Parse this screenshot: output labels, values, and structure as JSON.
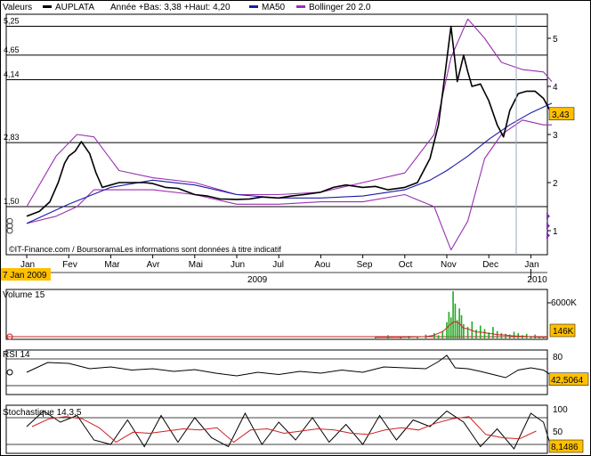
{
  "colors": {
    "price": "#000000",
    "ma": "#1a1aa8",
    "bollinger": "#9a2fb0",
    "volume": "#22aa22",
    "volume_avg": "#cc2222",
    "stoch_signal": "#cc2222",
    "badge_bg": "#ffc000",
    "grid": "#000000",
    "today_line": "#99aabb"
  },
  "legend": {
    "label": "Valeurs",
    "symbol": "AUPLATA",
    "stats": "Année +Bas: 3,38 +Haut: 4,20",
    "ma": "MA50",
    "bollinger": "Bollinger 20 2.0"
  },
  "credit": "©IT-Finance.com / BoursoramaLes informations sont données à titre indicatif",
  "date_badge": "7 Jan 2009",
  "chart_data": [
    {
      "type": "line",
      "name": "price",
      "x_labels": [
        "Jan",
        "Fev",
        "Mar",
        "Avr",
        "Mai",
        "Jun",
        "Jul",
        "Aou",
        "Sep",
        "Oct",
        "Nov",
        "Dec",
        "Jan"
      ],
      "year_labels": [
        "2009",
        "2010"
      ],
      "hlines_left": [
        "5,25",
        "4,65",
        "4,14",
        "2,83",
        "1,50"
      ],
      "right_ticks": [
        "5",
        "4",
        "3",
        "2",
        "1"
      ],
      "last_value": "3,43",
      "ylim": [
        0.5,
        5.5
      ],
      "series": [
        {
          "name": "AUPLATA",
          "x": [
            0,
            0.3,
            0.55,
            0.75,
            0.9,
            1.0,
            1.15,
            1.3,
            1.5,
            1.65,
            1.8,
            2.0,
            2.2,
            2.5,
            2.8,
            3.0,
            3.3,
            3.6,
            4.0,
            4.3,
            4.6,
            5.0,
            5.3,
            5.6,
            6.0,
            6.3,
            6.6,
            7.0,
            7.3,
            7.6,
            8.0,
            8.3,
            8.6,
            9.0,
            9.3,
            9.6,
            9.8,
            9.95,
            10.1,
            10.25,
            10.4,
            10.5,
            10.6,
            10.8,
            11.0,
            11.2,
            11.35,
            11.5,
            11.7,
            11.9,
            12.1,
            12.3,
            12.5
          ],
          "y": [
            1.3,
            1.4,
            1.6,
            2.0,
            2.4,
            2.55,
            2.65,
            2.85,
            2.6,
            2.2,
            1.9,
            1.95,
            2.0,
            2.0,
            2.0,
            1.98,
            1.9,
            1.88,
            1.75,
            1.72,
            1.66,
            1.65,
            1.66,
            1.7,
            1.68,
            1.72,
            1.75,
            1.8,
            1.9,
            1.95,
            1.9,
            1.92,
            1.85,
            1.9,
            2.0,
            2.5,
            3.2,
            4.2,
            5.25,
            4.1,
            4.65,
            4.3,
            4.0,
            4.05,
            3.7,
            3.2,
            2.95,
            3.5,
            3.85,
            3.9,
            3.9,
            3.75,
            3.43
          ]
        },
        {
          "name": "MA50",
          "x": [
            0,
            1,
            2,
            3,
            4,
            5,
            6,
            7,
            8,
            9,
            9.6,
            10.0,
            10.5,
            11.0,
            11.5,
            12.0,
            12.5
          ],
          "y": [
            1.15,
            1.55,
            1.9,
            2.05,
            1.95,
            1.75,
            1.68,
            1.68,
            1.72,
            1.85,
            2.05,
            2.25,
            2.55,
            2.9,
            3.2,
            3.45,
            3.65
          ]
        },
        {
          "name": "Bollinger upper",
          "x": [
            0,
            0.7,
            1.2,
            1.6,
            2.2,
            3,
            4,
            5,
            6,
            7,
            8,
            9,
            9.7,
            10.1,
            10.5,
            10.9,
            11.3,
            11.8,
            12.3,
            12.5
          ],
          "y": [
            1.5,
            2.55,
            3.0,
            2.95,
            2.25,
            2.1,
            2.0,
            1.75,
            1.75,
            1.8,
            2.0,
            2.2,
            3.0,
            4.6,
            5.4,
            5.0,
            4.5,
            4.35,
            4.3,
            4.1
          ]
        },
        {
          "name": "Bollinger lower",
          "x": [
            0,
            0.7,
            1.2,
            1.6,
            2.2,
            3,
            4,
            5,
            6,
            7,
            8,
            9,
            9.7,
            10.1,
            10.5,
            10.9,
            11.3,
            11.8,
            12.3,
            12.5
          ],
          "y": [
            1.15,
            1.3,
            1.5,
            1.85,
            1.85,
            1.85,
            1.75,
            1.55,
            1.55,
            1.6,
            1.6,
            1.75,
            1.5,
            0.6,
            1.2,
            2.5,
            3.0,
            3.3,
            3.2,
            3.2
          ]
        }
      ]
    },
    {
      "type": "bar",
      "name": "Volume 15",
      "title": "Volume 15",
      "right_tick": "6000K",
      "last_value": "146K",
      "ylim": [
        0,
        7000
      ],
      "x": [
        8.3,
        8.6,
        8.9,
        9.1,
        9.3,
        9.5,
        9.7,
        9.8,
        9.9,
        10.0,
        10.05,
        10.1,
        10.15,
        10.2,
        10.25,
        10.3,
        10.35,
        10.4,
        10.5,
        10.6,
        10.7,
        10.8,
        10.9,
        11.0,
        11.1,
        11.2,
        11.3,
        11.4,
        11.5,
        11.6,
        11.7,
        11.8,
        11.9,
        12.0,
        12.1,
        12.2,
        12.3,
        12.4
      ],
      "values": [
        400,
        600,
        300,
        500,
        450,
        700,
        900,
        600,
        1200,
        2500,
        4000,
        3200,
        7000,
        5200,
        2800,
        4500,
        3500,
        2200,
        1800,
        2600,
        1400,
        2000,
        1500,
        1000,
        1800,
        1200,
        900,
        800,
        700,
        1100,
        900,
        600,
        800,
        500,
        700,
        400,
        450,
        300
      ]
    },
    {
      "type": "line",
      "name": "RSI 14",
      "title": "RSI 14",
      "right_tick": "80",
      "last_value": "42,5064",
      "ylim": [
        0,
        100
      ],
      "x": [
        0,
        0.5,
        1,
        1.5,
        2,
        2.5,
        3,
        3.5,
        4,
        4.5,
        5,
        5.5,
        6,
        6.5,
        7,
        7.5,
        8,
        8.5,
        9,
        9.5,
        9.8,
        10.0,
        10.2,
        10.5,
        10.8,
        11.1,
        11.4,
        11.7,
        12.0,
        12.3,
        12.5
      ],
      "y": [
        50,
        72,
        70,
        58,
        62,
        55,
        58,
        52,
        56,
        48,
        42,
        50,
        45,
        52,
        48,
        55,
        50,
        62,
        60,
        58,
        74,
        88,
        60,
        58,
        52,
        45,
        38,
        55,
        60,
        55,
        42.5
      ]
    },
    {
      "type": "line",
      "name": "Stochastique 14,3,5",
      "title": "Stochastique 14,3,5",
      "right_ticks": [
        "100",
        "50"
      ],
      "last_value": "8,1486",
      "ylim": [
        0,
        100
      ],
      "x": [
        0,
        0.4,
        0.8,
        1.2,
        1.6,
        2.0,
        2.4,
        2.8,
        3.2,
        3.6,
        4.0,
        4.4,
        4.8,
        5.2,
        5.6,
        6.0,
        6.4,
        6.8,
        7.2,
        7.6,
        8.0,
        8.4,
        8.8,
        9.2,
        9.6,
        10.0,
        10.4,
        10.8,
        11.2,
        11.6,
        12.0,
        12.3,
        12.5
      ],
      "y": [
        60,
        95,
        70,
        85,
        30,
        20,
        75,
        15,
        85,
        25,
        80,
        35,
        15,
        90,
        20,
        70,
        30,
        80,
        25,
        65,
        20,
        85,
        30,
        75,
        60,
        95,
        70,
        15,
        55,
        10,
        90,
        70,
        8.1
      ]
    }
  ]
}
